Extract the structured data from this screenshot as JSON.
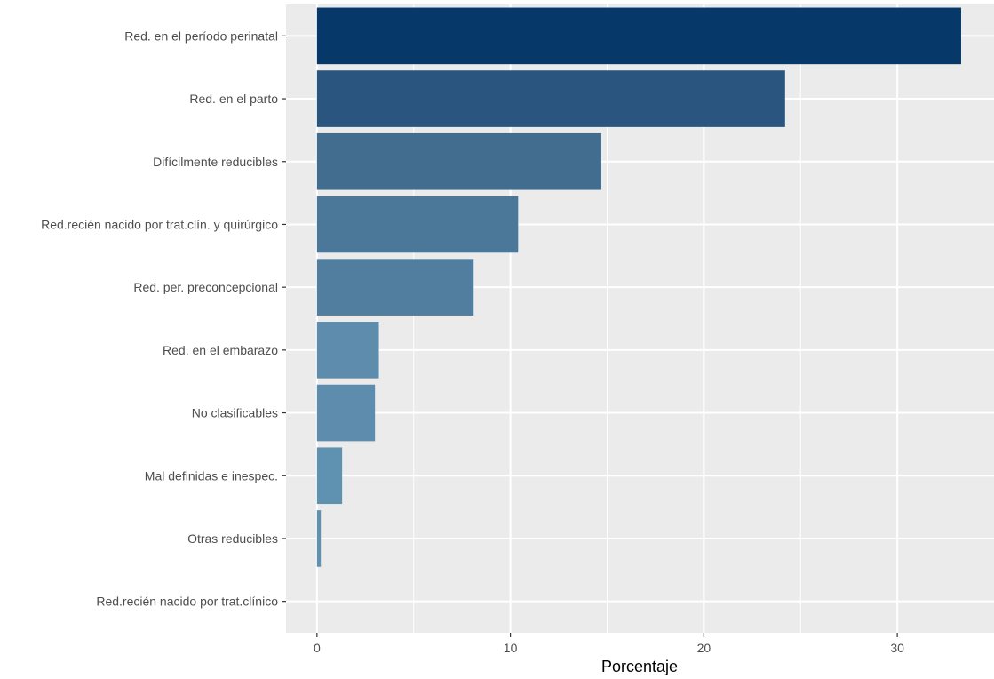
{
  "chart_data": {
    "type": "bar",
    "orientation": "horizontal",
    "categories": [
      "Red. en el período perinatal",
      "Red. en el parto",
      "Difícilmente reducibles",
      "Red.recién nacido por trat.clín. y quirúrgico",
      "Red. per. preconcepcional",
      "Red. en el embarazo",
      "No clasificables",
      "Mal definidas e inespec.",
      "Otras reducibles",
      "Red.recién nacido por trat.clínico"
    ],
    "values": [
      33.3,
      24.2,
      14.7,
      10.4,
      8.1,
      3.2,
      3.0,
      1.3,
      0.2,
      0.0
    ],
    "colors": [
      "#06386a",
      "#29557f",
      "#426d8f",
      "#4b7799",
      "#517e9e",
      "#5d8cac",
      "#5d8cac",
      "#5e92b0",
      "#5e92b0",
      "#5e92b0"
    ],
    "xlabel": "Porcentaje",
    "xlim": [
      -1.6,
      35.0
    ],
    "xticks": [
      0,
      10,
      20,
      30
    ],
    "grid": true,
    "background": "#ebebeb",
    "grid_color": "#ffffff"
  }
}
